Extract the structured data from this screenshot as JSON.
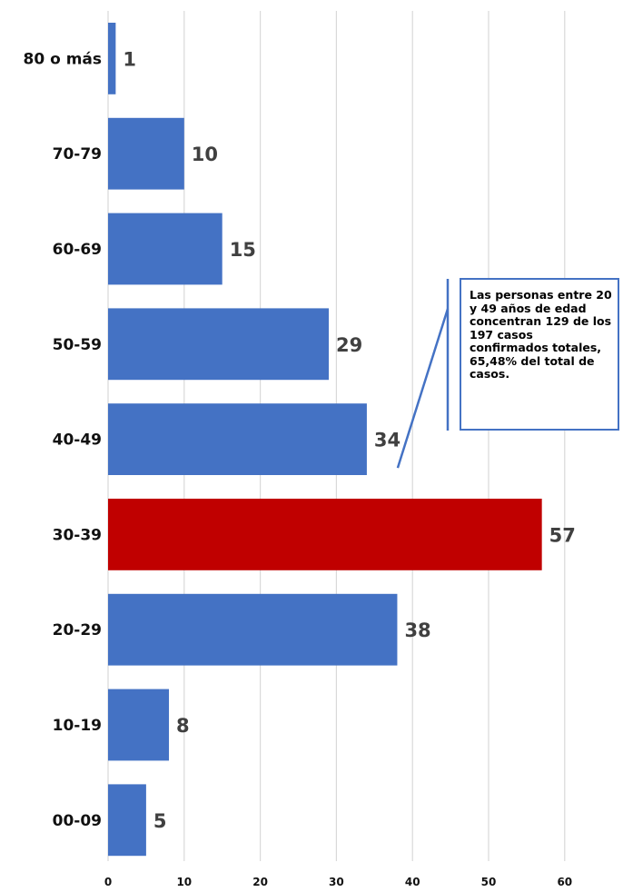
{
  "chart_data": {
    "type": "bar",
    "orientation": "horizontal",
    "categories": [
      "80 o más",
      "70-79",
      "60-69",
      "50-59",
      "40-49",
      "30-39",
      "20-29",
      "10-19",
      "00-09"
    ],
    "values": [
      1,
      10,
      15,
      29,
      34,
      57,
      38,
      8,
      5
    ],
    "value_labels": [
      "1",
      "10",
      "15",
      "29",
      "34",
      "57",
      "38",
      "8",
      "5"
    ],
    "highlighted_category": "30-39",
    "xlim": [
      0,
      65
    ],
    "x_ticks": [
      0,
      10,
      20,
      30,
      40,
      50,
      60
    ],
    "x_tick_labels": [
      "0",
      "10",
      "20",
      "30",
      "40",
      "50",
      "60"
    ],
    "grid": "vertical",
    "legend": "none",
    "colors": {
      "bar": "#4472c4",
      "highlight": "#c00000",
      "grid": "#d9d9d9",
      "callout_border": "#4472c4"
    },
    "annotation": {
      "text": "Las personas entre 20 y 49 años de edad concentran 129 de los 197 casos confirmados totales, 65,48% del total de casos.",
      "points_to_category": "40-49"
    }
  }
}
